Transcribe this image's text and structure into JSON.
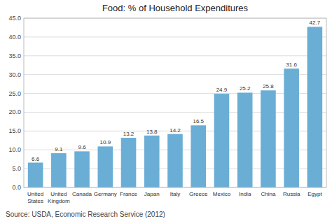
{
  "chart_data": {
    "type": "bar",
    "title": "Food: % of Household Expenditures",
    "categories": [
      "United\nStates",
      "United\nKingdom",
      "Canada",
      "Germany",
      "France",
      "Japan",
      "Italy",
      "Greece",
      "Mexico",
      "India",
      "China",
      "Russia",
      "Egypt"
    ],
    "values": [
      6.6,
      9.1,
      9.6,
      10.9,
      13.2,
      13.8,
      14.2,
      16.5,
      24.9,
      25.2,
      25.8,
      31.6,
      42.7
    ],
    "color": "#6aaed6",
    "ylim": [
      0,
      45.0
    ],
    "yticks": [
      {
        "value": 0.0,
        "label": "0.0"
      },
      {
        "value": 5.0,
        "label": "5.0"
      },
      {
        "value": 10.0,
        "label": "10.0"
      },
      {
        "value": 15.0,
        "label": "15.0"
      },
      {
        "value": 20.0,
        "label": "20.0"
      },
      {
        "value": 25.0,
        "label": "25.0"
      },
      {
        "value": 30.0,
        "label": "30.0"
      },
      {
        "value": 35.0,
        "label": "35.0"
      },
      {
        "value": 40.0,
        "label": "40.0"
      },
      {
        "value": 45.0,
        "label": "45.0"
      }
    ],
    "grid": true,
    "data_labels": true,
    "source": "Source: USDA, Economic Research Service (2012)"
  }
}
